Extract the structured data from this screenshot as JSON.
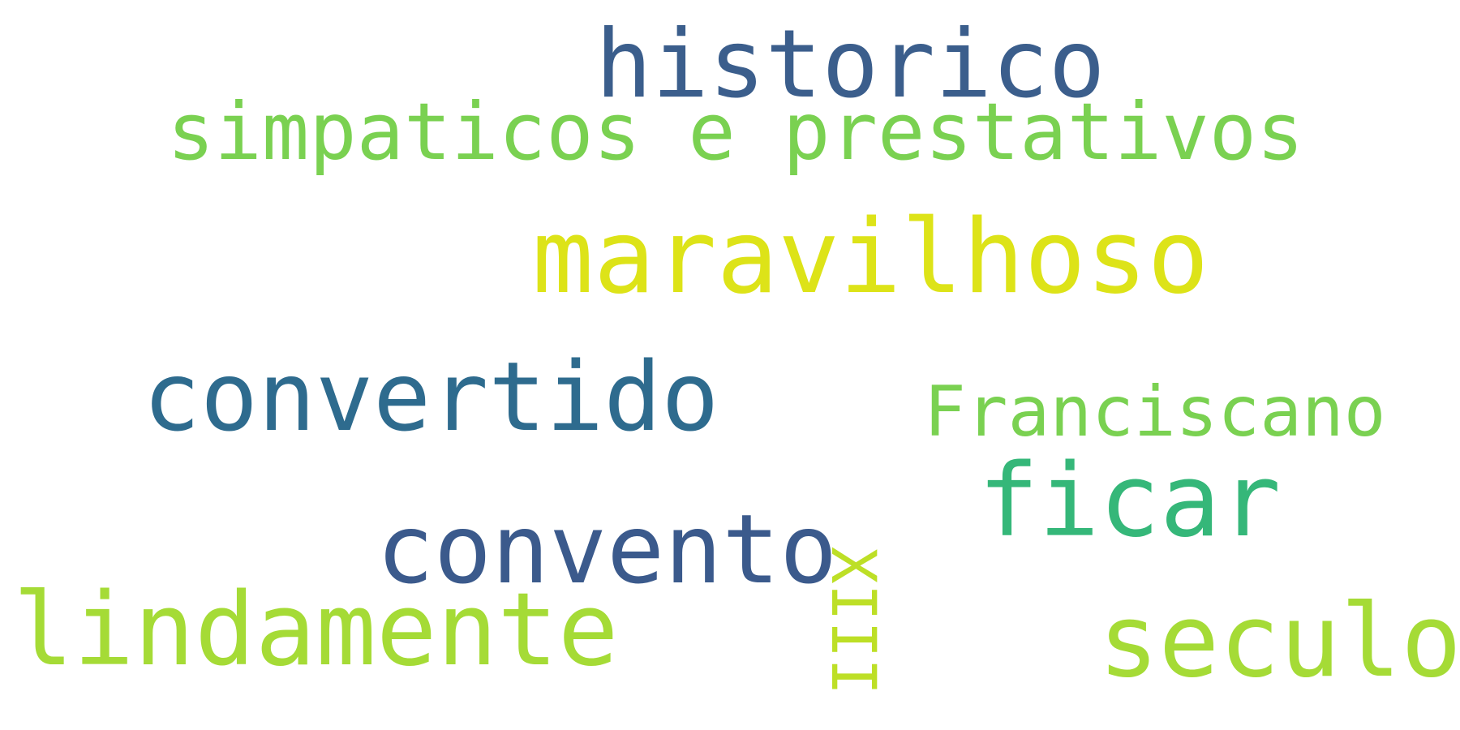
{
  "words": [
    {
      "id": "historico",
      "text": "historico",
      "color": "#3b5e8c"
    },
    {
      "id": "simpaticos",
      "text": "simpaticos e prestativos",
      "color": "#7ad151"
    },
    {
      "id": "maravilhoso",
      "text": "maravilhoso",
      "color": "#dde318"
    },
    {
      "id": "convertido",
      "text": "convertido",
      "color": "#2e6b8e"
    },
    {
      "id": "franciscano",
      "text": "Franciscano",
      "color": "#7ad151"
    },
    {
      "id": "ficar",
      "text": "ficar",
      "color": "#35b779"
    },
    {
      "id": "convento",
      "text": "convento",
      "color": "#3b5a8c"
    },
    {
      "id": "lindamente",
      "text": "lindamente",
      "color": "#a5db36"
    },
    {
      "id": "seculo",
      "text": "seculo",
      "color": "#a5db36"
    },
    {
      "id": "xiii",
      "text": "XIII",
      "color": "#bddf26",
      "orientation": "vertical"
    }
  ]
}
